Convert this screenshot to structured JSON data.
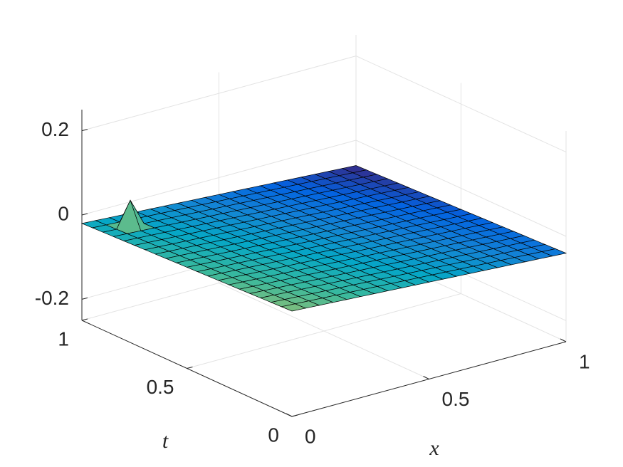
{
  "chart_data": {
    "type": "surface",
    "xlabel": "x",
    "ylabel": "t",
    "x": [
      0,
      0.05,
      0.1,
      0.15,
      0.2,
      0.25,
      0.3,
      0.35,
      0.4,
      0.45,
      0.5,
      0.55,
      0.6,
      0.65,
      0.7,
      0.75,
      0.8,
      0.85,
      0.9,
      0.95,
      1
    ],
    "y": [
      0,
      0.05,
      0.1,
      0.15,
      0.2,
      0.25,
      0.3,
      0.35,
      0.4,
      0.45,
      0.5,
      0.55,
      0.6,
      0.65,
      0.7,
      0.75,
      0.8,
      0.85,
      0.9,
      0.95,
      1
    ],
    "z": [
      [
        0,
        -0.002,
        -0.004,
        -0.006,
        -0.008,
        -0.01,
        -0.012,
        -0.014,
        -0.016,
        -0.018,
        -0.02,
        -0.022,
        -0.024,
        -0.026,
        -0.028,
        -0.03,
        -0.032,
        -0.034,
        -0.036,
        -0.038,
        -0.04
      ],
      [
        -0.001,
        -0.003,
        -0.005,
        -0.007,
        -0.009,
        -0.011,
        -0.013,
        -0.015,
        -0.017,
        -0.019,
        -0.021,
        -0.023,
        -0.025,
        -0.027,
        -0.029,
        -0.031,
        -0.033,
        -0.035,
        -0.037,
        -0.039,
        -0.041
      ],
      [
        -0.002,
        -0.004,
        -0.006,
        -0.008,
        -0.01,
        -0.012,
        -0.014,
        -0.016,
        -0.018,
        -0.02,
        -0.022,
        -0.024,
        -0.026,
        -0.028,
        -0.03,
        -0.032,
        -0.034,
        -0.036,
        -0.038,
        -0.04,
        -0.042
      ],
      [
        -0.003,
        -0.005,
        -0.007,
        -0.009,
        -0.011,
        -0.013,
        -0.015,
        -0.017,
        -0.019,
        -0.021,
        -0.023,
        -0.025,
        -0.027,
        -0.029,
        -0.031,
        -0.033,
        -0.035,
        -0.037,
        -0.039,
        -0.041,
        -0.043
      ],
      [
        -0.004,
        -0.006,
        -0.008,
        -0.01,
        -0.012,
        -0.014,
        -0.016,
        -0.018,
        -0.02,
        -0.022,
        -0.024,
        -0.026,
        -0.028,
        -0.03,
        -0.032,
        -0.034,
        -0.036,
        -0.038,
        -0.04,
        -0.042,
        -0.044
      ],
      [
        -0.005,
        -0.007,
        -0.009,
        -0.011,
        -0.013,
        -0.015,
        -0.017,
        -0.019,
        -0.021,
        -0.023,
        -0.025,
        -0.027,
        -0.029,
        -0.031,
        -0.033,
        -0.035,
        -0.037,
        -0.039,
        -0.041,
        -0.043,
        -0.045
      ],
      [
        -0.006,
        -0.008,
        -0.01,
        -0.012,
        -0.014,
        -0.016,
        -0.018,
        -0.02,
        -0.022,
        -0.024,
        -0.026,
        -0.028,
        -0.03,
        -0.032,
        -0.034,
        -0.036,
        -0.038,
        -0.04,
        -0.042,
        -0.044,
        -0.046
      ],
      [
        -0.007,
        -0.009,
        -0.011,
        -0.013,
        -0.015,
        -0.017,
        -0.019,
        -0.021,
        -0.023,
        -0.025,
        -0.027,
        -0.029,
        -0.031,
        -0.033,
        -0.035,
        -0.037,
        -0.039,
        -0.041,
        -0.043,
        -0.045,
        -0.047
      ],
      [
        -0.008,
        -0.01,
        -0.012,
        -0.014,
        -0.016,
        -0.018,
        -0.02,
        -0.022,
        -0.024,
        -0.026,
        -0.028,
        -0.03,
        -0.032,
        -0.034,
        -0.036,
        -0.038,
        -0.04,
        -0.042,
        -0.044,
        -0.046,
        -0.048
      ],
      [
        -0.009,
        -0.011,
        -0.013,
        -0.015,
        -0.017,
        -0.019,
        -0.021,
        -0.023,
        -0.025,
        -0.027,
        -0.029,
        -0.031,
        -0.033,
        -0.035,
        -0.037,
        -0.039,
        -0.041,
        -0.043,
        -0.045,
        -0.047,
        -0.049
      ],
      [
        -0.01,
        -0.012,
        -0.014,
        -0.016,
        -0.018,
        -0.02,
        -0.022,
        -0.024,
        -0.026,
        -0.028,
        -0.03,
        -0.032,
        -0.034,
        -0.036,
        -0.038,
        -0.04,
        -0.042,
        -0.044,
        -0.046,
        -0.048,
        -0.05
      ],
      [
        -0.011,
        -0.013,
        -0.015,
        -0.017,
        -0.019,
        -0.021,
        -0.023,
        -0.025,
        -0.027,
        -0.029,
        -0.031,
        -0.033,
        -0.035,
        -0.037,
        -0.039,
        -0.041,
        -0.043,
        -0.045,
        -0.047,
        -0.049,
        -0.051
      ],
      [
        -0.012,
        -0.014,
        -0.016,
        -0.018,
        -0.02,
        -0.022,
        -0.024,
        -0.026,
        -0.028,
        -0.03,
        -0.032,
        -0.034,
        -0.036,
        -0.038,
        -0.04,
        -0.042,
        -0.044,
        -0.046,
        -0.048,
        -0.05,
        -0.052
      ],
      [
        -0.013,
        -0.015,
        -0.017,
        -0.019,
        -0.021,
        -0.023,
        -0.025,
        -0.027,
        -0.029,
        -0.031,
        -0.033,
        -0.035,
        -0.037,
        -0.039,
        -0.041,
        -0.043,
        -0.045,
        -0.047,
        -0.049,
        -0.051,
        -0.053
      ],
      [
        -0.014,
        -0.016,
        -0.018,
        -0.02,
        -0.022,
        -0.024,
        -0.026,
        -0.028,
        -0.03,
        -0.032,
        -0.034,
        -0.036,
        -0.038,
        -0.04,
        -0.042,
        -0.044,
        -0.046,
        -0.048,
        -0.05,
        -0.052,
        -0.054
      ],
      [
        -0.015,
        -0.017,
        -0.019,
        -0.021,
        -0.023,
        -0.025,
        -0.027,
        -0.029,
        -0.031,
        -0.033,
        -0.035,
        -0.037,
        -0.039,
        -0.041,
        -0.043,
        -0.045,
        -0.047,
        -0.049,
        -0.051,
        -0.053,
        -0.055
      ],
      [
        -0.016,
        -0.018,
        -0.02,
        -0.022,
        -0.024,
        -0.026,
        -0.028,
        -0.03,
        -0.032,
        -0.034,
        -0.036,
        -0.038,
        -0.04,
        -0.042,
        -0.044,
        -0.046,
        -0.048,
        -0.05,
        -0.052,
        -0.054,
        -0.056
      ],
      [
        -0.017,
        -0.019,
        -0.021,
        -0.023,
        -0.025,
        -0.027,
        -0.029,
        -0.031,
        -0.033,
        -0.035,
        -0.037,
        -0.039,
        -0.041,
        -0.043,
        -0.045,
        -0.047,
        -0.049,
        -0.051,
        -0.053,
        -0.055,
        -0.057
      ],
      [
        -0.018,
        -0.02,
        0.04,
        -0.024,
        -0.026,
        -0.028,
        -0.03,
        -0.032,
        -0.034,
        -0.036,
        -0.038,
        -0.04,
        -0.042,
        -0.044,
        -0.046,
        -0.048,
        -0.05,
        -0.052,
        -0.054,
        -0.056,
        -0.058
      ],
      [
        -0.019,
        -0.021,
        -0.023,
        -0.025,
        -0.027,
        -0.029,
        -0.031,
        -0.033,
        -0.035,
        -0.037,
        -0.039,
        -0.041,
        -0.043,
        -0.045,
        -0.047,
        -0.049,
        -0.051,
        -0.053,
        -0.055,
        -0.057,
        -0.059
      ],
      [
        -0.02,
        -0.022,
        -0.024,
        -0.026,
        -0.028,
        -0.03,
        -0.032,
        -0.034,
        -0.036,
        -0.038,
        -0.04,
        -0.042,
        -0.044,
        -0.046,
        -0.048,
        -0.05,
        -0.052,
        -0.054,
        -0.056,
        -0.058,
        -0.06
      ]
    ],
    "xlim": [
      0,
      1
    ],
    "ylim": [
      0,
      1
    ],
    "zlim": [
      -0.25,
      0.25
    ],
    "xticks": [
      0,
      0.5,
      1
    ],
    "yticks": [
      0,
      0.5,
      1
    ],
    "zticks": [
      -0.2,
      0,
      0.2
    ],
    "grid": true,
    "edgecolor": "#000000",
    "colormap": [
      "#352a87",
      "#0363e1",
      "#1485d4",
      "#06a7c6",
      "#38b99e",
      "#92bf73",
      "#d9ba56",
      "#fcce2e",
      "#f9fb0e"
    ]
  }
}
